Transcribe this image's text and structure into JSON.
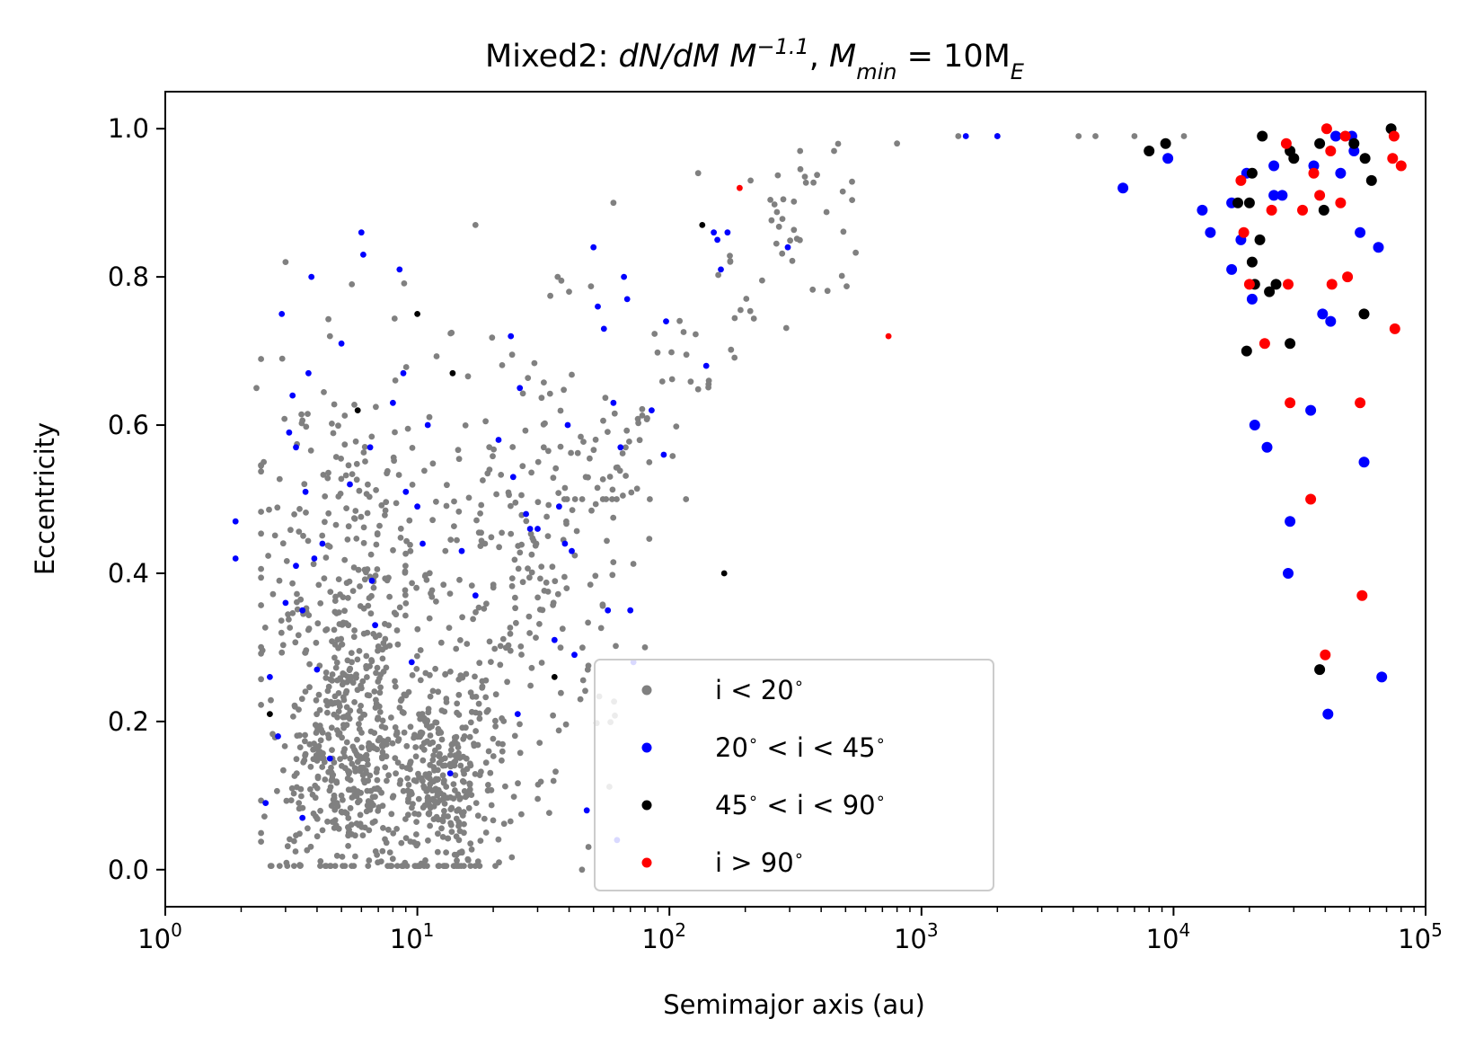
{
  "chart_data": {
    "type": "scatter",
    "title": {
      "prefix": "Mixed2: ",
      "expr": "dN/dM M",
      "exp": "−1.1",
      "sep": ", ",
      "mmin": "M",
      "mmin_sub": "min",
      "eq": " = 10M",
      "me_sub": "E"
    },
    "xlabel": "Semimajor axis (au)",
    "ylabel": "Eccentricity",
    "xscale": "log",
    "xlim": [
      1,
      100000
    ],
    "ylim": [
      -0.05,
      1.05
    ],
    "grid": false,
    "legend_position": "lower-center",
    "xticks": [
      {
        "value": 1,
        "base": "10",
        "exp": "0"
      },
      {
        "value": 10,
        "base": "10",
        "exp": "1"
      },
      {
        "value": 100,
        "base": "10",
        "exp": "2"
      },
      {
        "value": 1000,
        "base": "10",
        "exp": "3"
      },
      {
        "value": 10000,
        "base": "10",
        "exp": "4"
      },
      {
        "value": 100000,
        "base": "10",
        "exp": "5"
      }
    ],
    "yticks": [
      {
        "value": 0.0,
        "label": "0.0"
      },
      {
        "value": 0.2,
        "label": "0.2"
      },
      {
        "value": 0.4,
        "label": "0.4"
      },
      {
        "value": 0.6,
        "label": "0.6"
      },
      {
        "value": 0.8,
        "label": "0.8"
      },
      {
        "value": 1.0,
        "label": "1.0"
      }
    ],
    "series": [
      {
        "name": "i < 20 °",
        "label_parts": [
          "i < 20",
          "∘",
          ""
        ],
        "color": "#808080",
        "generated_count": 1250,
        "sample_points": [
          [
            2.3,
            0.65
          ],
          [
            3.0,
            0.82
          ],
          [
            4.5,
            0.72
          ],
          [
            5.5,
            0.79
          ],
          [
            17,
            0.87
          ],
          [
            40,
            0.78
          ],
          [
            60,
            0.9
          ],
          [
            130,
            0.94
          ],
          [
            210,
            0.93
          ],
          [
            330,
            0.97
          ],
          [
            450,
            0.97
          ],
          [
            800,
            0.98
          ],
          [
            1400,
            0.99
          ],
          [
            2000,
            0.99
          ],
          [
            4200,
            0.99
          ],
          [
            4900,
            0.99
          ],
          [
            7000,
            0.99
          ],
          [
            11000,
            0.99
          ],
          [
            45,
            0.0
          ],
          [
            5,
            0.1
          ],
          [
            12,
            0.1
          ],
          [
            80,
            0.3
          ]
        ]
      },
      {
        "name": "20 ° < i < 45 °",
        "label_parts": [
          "20",
          "∘",
          " < i < 45",
          "∘",
          ""
        ],
        "color": "#0000ff",
        "points": [
          [
            1.9,
            0.47
          ],
          [
            1.9,
            0.42
          ],
          [
            2.5,
            0.09
          ],
          [
            2.6,
            0.26
          ],
          [
            2.8,
            0.18
          ],
          [
            2.9,
            0.75
          ],
          [
            3.0,
            0.36
          ],
          [
            3.1,
            0.59
          ],
          [
            3.2,
            0.64
          ],
          [
            3.3,
            0.57
          ],
          [
            3.3,
            0.41
          ],
          [
            3.5,
            0.35
          ],
          [
            3.5,
            0.07
          ],
          [
            3.6,
            0.51
          ],
          [
            3.7,
            0.67
          ],
          [
            3.8,
            0.8
          ],
          [
            3.9,
            0.42
          ],
          [
            4.0,
            0.27
          ],
          [
            4.2,
            0.44
          ],
          [
            4.5,
            0.15
          ],
          [
            5.0,
            0.71
          ],
          [
            5.4,
            0.52
          ],
          [
            6.0,
            0.86
          ],
          [
            6.1,
            0.83
          ],
          [
            6.5,
            0.57
          ],
          [
            6.6,
            0.39
          ],
          [
            6.8,
            0.33
          ],
          [
            8.0,
            0.63
          ],
          [
            8.5,
            0.81
          ],
          [
            8.8,
            0.67
          ],
          [
            9.0,
            0.51
          ],
          [
            9.5,
            0.28
          ],
          [
            10.0,
            0.49
          ],
          [
            10.5,
            0.44
          ],
          [
            11.0,
            0.6
          ],
          [
            13.5,
            0.13
          ],
          [
            15.0,
            0.43
          ],
          [
            17.0,
            0.37
          ],
          [
            21.0,
            0.58
          ],
          [
            23.5,
            0.72
          ],
          [
            24.0,
            0.53
          ],
          [
            25.0,
            0.21
          ],
          [
            25.5,
            0.65
          ],
          [
            27.0,
            0.48
          ],
          [
            28.0,
            0.46
          ],
          [
            30.0,
            0.46
          ],
          [
            35.0,
            0.31
          ],
          [
            36.5,
            0.49
          ],
          [
            38.5,
            0.44
          ],
          [
            39.5,
            0.6
          ],
          [
            41.0,
            0.43
          ],
          [
            42.0,
            0.29
          ],
          [
            47.0,
            0.08
          ],
          [
            50.0,
            0.84
          ],
          [
            52.0,
            0.76
          ],
          [
            55.0,
            0.73
          ],
          [
            57.0,
            0.35
          ],
          [
            60.0,
            0.63
          ],
          [
            62.0,
            0.04
          ],
          [
            64.0,
            0.57
          ],
          [
            66.0,
            0.8
          ],
          [
            68.0,
            0.77
          ],
          [
            70.0,
            0.35
          ],
          [
            72.0,
            0.28
          ],
          [
            85.0,
            0.62
          ],
          [
            95.0,
            0.56
          ],
          [
            97.0,
            0.74
          ],
          [
            140.0,
            0.68
          ],
          [
            150.0,
            0.86
          ],
          [
            155.0,
            0.85
          ],
          [
            160.0,
            0.81
          ],
          [
            170.0,
            0.86
          ],
          [
            295.0,
            0.84
          ],
          [
            1500.0,
            0.99
          ],
          [
            2000.0,
            0.99
          ],
          [
            6300.0,
            0.92
          ],
          [
            9500.0,
            0.96
          ],
          [
            13000.0,
            0.89
          ],
          [
            14000.0,
            0.86
          ],
          [
            17000.0,
            0.9
          ],
          [
            17000.0,
            0.81
          ],
          [
            18500.0,
            0.85
          ],
          [
            19500.0,
            0.94
          ],
          [
            20500.0,
            0.77
          ],
          [
            21000.0,
            0.6
          ],
          [
            23500.0,
            0.57
          ],
          [
            25000.0,
            0.91
          ],
          [
            25000.0,
            0.95
          ],
          [
            27000.0,
            0.91
          ],
          [
            28500.0,
            0.4
          ],
          [
            29000.0,
            0.47
          ],
          [
            35000.0,
            0.62
          ],
          [
            36000.0,
            0.95
          ],
          [
            39000.0,
            0.75
          ],
          [
            41000.0,
            0.21
          ],
          [
            42000.0,
            0.74
          ],
          [
            44000.0,
            0.99
          ],
          [
            46000.0,
            0.94
          ],
          [
            51000.0,
            0.99
          ],
          [
            52000.0,
            0.97
          ],
          [
            55000.0,
            0.86
          ],
          [
            57000.0,
            0.55
          ],
          [
            65000.0,
            0.84
          ],
          [
            67000.0,
            0.26
          ]
        ]
      },
      {
        "name": "45 ° < i < 90 °",
        "label_parts": [
          "45",
          "∘",
          " < i < 90",
          "∘",
          ""
        ],
        "color": "#000000",
        "points": [
          [
            2.6,
            0.21
          ],
          [
            5.8,
            0.62
          ],
          [
            10.0,
            0.75
          ],
          [
            13.8,
            0.67
          ],
          [
            35.0,
            0.26
          ],
          [
            135.0,
            0.87
          ],
          [
            165.0,
            0.4
          ],
          [
            8000.0,
            0.97
          ],
          [
            9300.0,
            0.98
          ],
          [
            18000.0,
            0.9
          ],
          [
            19500.0,
            0.7
          ],
          [
            20000.0,
            0.9
          ],
          [
            20500.0,
            0.94
          ],
          [
            20500.0,
            0.82
          ],
          [
            21000.0,
            0.79
          ],
          [
            22000.0,
            0.85
          ],
          [
            22500.0,
            0.99
          ],
          [
            24000.0,
            0.78
          ],
          [
            25500.0,
            0.79
          ],
          [
            29000.0,
            0.71
          ],
          [
            29000.0,
            0.97
          ],
          [
            30000.0,
            0.96
          ],
          [
            38000.0,
            0.98
          ],
          [
            38000.0,
            0.27
          ],
          [
            39500.0,
            0.89
          ],
          [
            52000.0,
            0.98
          ],
          [
            57000.0,
            0.75
          ],
          [
            57500.0,
            0.96
          ],
          [
            61000.0,
            0.93
          ],
          [
            73000.0,
            1.0
          ]
        ]
      },
      {
        "name": "i > 90 °",
        "label_parts": [
          "i > 90",
          "∘",
          ""
        ],
        "color": "#ff0000",
        "points": [
          [
            190.0,
            0.92
          ],
          [
            740.0,
            0.72
          ],
          [
            18500.0,
            0.93
          ],
          [
            19000.0,
            0.86
          ],
          [
            20000.0,
            0.79
          ],
          [
            23000.0,
            0.71
          ],
          [
            24500.0,
            0.89
          ],
          [
            28000.0,
            0.98
          ],
          [
            28500.0,
            0.79
          ],
          [
            29000.0,
            0.63
          ],
          [
            32500.0,
            0.89
          ],
          [
            35000.0,
            0.5
          ],
          [
            36000.0,
            0.94
          ],
          [
            38000.0,
            0.91
          ],
          [
            40000.0,
            0.29
          ],
          [
            40500.0,
            1.0
          ],
          [
            42000.0,
            0.97
          ],
          [
            42500.0,
            0.79
          ],
          [
            46000.0,
            0.9
          ],
          [
            48000.0,
            0.99
          ],
          [
            49000.0,
            0.8
          ],
          [
            55000.0,
            0.63
          ],
          [
            56000.0,
            0.37
          ],
          [
            74000.0,
            0.96
          ],
          [
            75000.0,
            0.99
          ],
          [
            75500.0,
            0.73
          ],
          [
            80000.0,
            0.95
          ]
        ]
      }
    ]
  }
}
